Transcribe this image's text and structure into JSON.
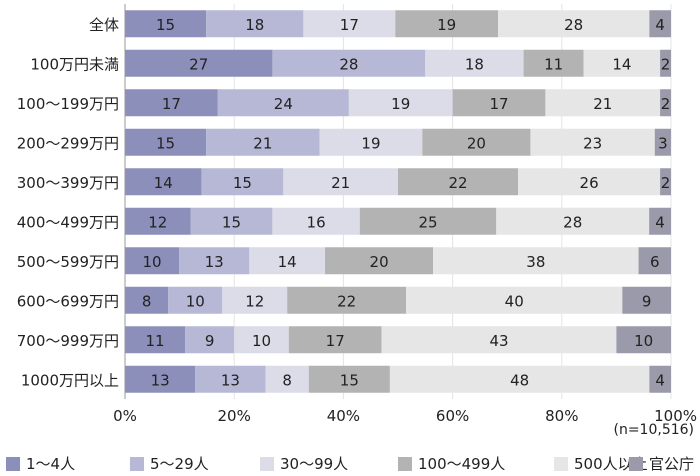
{
  "chart_data": {
    "type": "bar",
    "orientation": "horizontal",
    "stacked": true,
    "normalized_percent": true,
    "categories": [
      "全体",
      "100万円未満",
      "100～199万円",
      "200～299万円",
      "300～399万円",
      "400～499万円",
      "500～599万円",
      "600～699万円",
      "700～999万円",
      "1000万円以上"
    ],
    "series": [
      {
        "name": "1～4人",
        "color": "#8c8fba",
        "values": [
          15,
          27,
          17,
          15,
          14,
          12,
          10,
          8,
          11,
          13
        ]
      },
      {
        "name": "5～29人",
        "color": "#b6b8d6",
        "values": [
          18,
          28,
          24,
          21,
          15,
          15,
          13,
          10,
          9,
          13
        ]
      },
      {
        "name": "30～99人",
        "color": "#dcdce8",
        "values": [
          17,
          18,
          19,
          19,
          21,
          16,
          14,
          12,
          10,
          8
        ]
      },
      {
        "name": "100～499人",
        "color": "#b3b3b3",
        "values": [
          19,
          11,
          17,
          20,
          22,
          25,
          20,
          22,
          17,
          15
        ]
      },
      {
        "name": "500人以上",
        "color": "#e6e6e6",
        "values": [
          28,
          14,
          21,
          23,
          26,
          28,
          38,
          40,
          43,
          48
        ]
      },
      {
        "name": "官公庁",
        "color": "#9a9aaa",
        "values": [
          4,
          2,
          2,
          3,
          2,
          4,
          6,
          9,
          10,
          4
        ]
      }
    ],
    "xlim": [
      0,
      100
    ],
    "xticks": [
      "0%",
      "20%",
      "40%",
      "60%",
      "80%",
      "100%"
    ],
    "grid": true,
    "legend_position": "bottom",
    "note": "(n=10,516)"
  }
}
